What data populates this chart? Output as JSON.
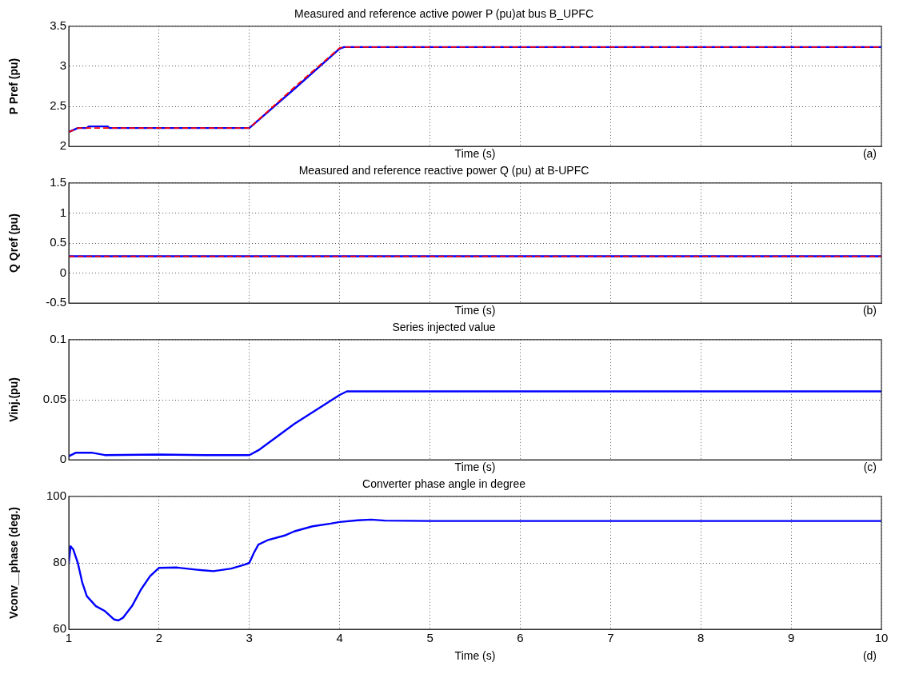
{
  "chart_data": [
    {
      "type": "line",
      "title": "Measured and reference active power P (pu)at bus B_UPFC",
      "xlabel": "Time (s)",
      "ylabel": "P Pref (pu)",
      "annotations": [
        "(a)"
      ],
      "xlim": [
        1,
        10
      ],
      "xticks": [
        1,
        2,
        3,
        4,
        5,
        6,
        7,
        8,
        9,
        10
      ],
      "ylim": [
        2,
        3.5
      ],
      "yticks": [
        2,
        2.5,
        3,
        3.5
      ],
      "tick_labels": "y",
      "grid": true,
      "marker": "none",
      "series": [
        {
          "color": "#0000ff",
          "line_style": "solid",
          "x": [
            1,
            1.1,
            1.2,
            1.22,
            1.43,
            1.45,
            3,
            3.5,
            4,
            4.05,
            4.15,
            10
          ],
          "values": [
            2.18,
            2.23,
            2.23,
            2.25,
            2.25,
            2.23,
            2.23,
            2.72,
            3.22,
            3.24,
            3.24,
            3.24
          ]
        },
        {
          "color": "#ff0000",
          "line_style": "dashed",
          "x": [
            1,
            1.1,
            3,
            3.5,
            4,
            4.05,
            10
          ],
          "values": [
            2.18,
            2.23,
            2.23,
            2.74,
            3.23,
            3.24,
            3.24
          ]
        }
      ]
    },
    {
      "type": "line",
      "title": "Measured and reference reactive power Q (pu) at B-UPFC",
      "xlabel": "Time (s)",
      "ylabel": "Q Qref (pu)",
      "annotations": [
        "(b)"
      ],
      "xlim": [
        1,
        10
      ],
      "xticks": [
        1,
        2,
        3,
        4,
        5,
        6,
        7,
        8,
        9,
        10
      ],
      "ylim": [
        -0.5,
        1.5
      ],
      "yticks": [
        -0.5,
        0,
        0.5,
        1,
        1.5
      ],
      "tick_labels": "y",
      "grid": true,
      "marker": "none",
      "series": [
        {
          "color": "#0000ff",
          "line_style": "solid",
          "x": [
            1,
            10
          ],
          "values": [
            0.28,
            0.28
          ]
        },
        {
          "color": "#ff0000",
          "line_style": "dashed",
          "x": [
            1,
            10
          ],
          "values": [
            0.28,
            0.28
          ]
        }
      ]
    },
    {
      "type": "line",
      "title": "Series injected value",
      "xlabel": "Time (s)",
      "ylabel": "Vinj.(pu)",
      "annotations": [
        "(c)"
      ],
      "xlim": [
        1,
        10
      ],
      "xticks": [
        1,
        2,
        3,
        4,
        5,
        6,
        7,
        8,
        9,
        10
      ],
      "ylim": [
        0,
        0.1
      ],
      "yticks": [
        0,
        0.05,
        0.1
      ],
      "tick_labels": "y",
      "grid": true,
      "marker": "none",
      "series": [
        {
          "color": "#0000ff",
          "line_style": "solid",
          "x": [
            1,
            1.08,
            1.25,
            1.4,
            2,
            2.5,
            3,
            3.1,
            3.5,
            4,
            4.08,
            10
          ],
          "values": [
            0.003,
            0.006,
            0.006,
            0.004,
            0.0045,
            0.004,
            0.004,
            0.008,
            0.03,
            0.054,
            0.057,
            0.057
          ]
        }
      ]
    },
    {
      "type": "line",
      "title": "Converter phase angle in degree",
      "xlabel": "Time (s)",
      "ylabel": "Vconv__phase (deg.)",
      "annotations": [
        "(d)"
      ],
      "xlim": [
        1,
        10
      ],
      "xticks": [
        1,
        2,
        3,
        4,
        5,
        6,
        7,
        8,
        9,
        10
      ],
      "ylim": [
        60,
        100
      ],
      "yticks": [
        60,
        80,
        100
      ],
      "grid": true,
      "marker": "none",
      "series": [
        {
          "color": "#0000ff",
          "line_style": "solid",
          "x": [
            1,
            1.02,
            1.05,
            1.1,
            1.15,
            1.2,
            1.3,
            1.4,
            1.5,
            1.55,
            1.6,
            1.7,
            1.8,
            1.9,
            2,
            2.2,
            2.4,
            2.6,
            2.8,
            2.95,
            3,
            3.05,
            3.1,
            3.2,
            3.4,
            3.5,
            3.7,
            3.9,
            4,
            4.2,
            4.35,
            4.5,
            5,
            10
          ],
          "values": [
            80,
            85,
            84,
            80,
            74,
            70,
            67,
            65.5,
            63,
            62.7,
            63.5,
            67,
            72,
            76,
            78.5,
            78.6,
            78,
            77.5,
            78.3,
            79.5,
            80,
            83,
            85.5,
            86.8,
            88.3,
            89.5,
            91,
            91.8,
            92.3,
            92.8,
            93,
            92.7,
            92.6,
            92.6
          ]
        }
      ]
    }
  ]
}
